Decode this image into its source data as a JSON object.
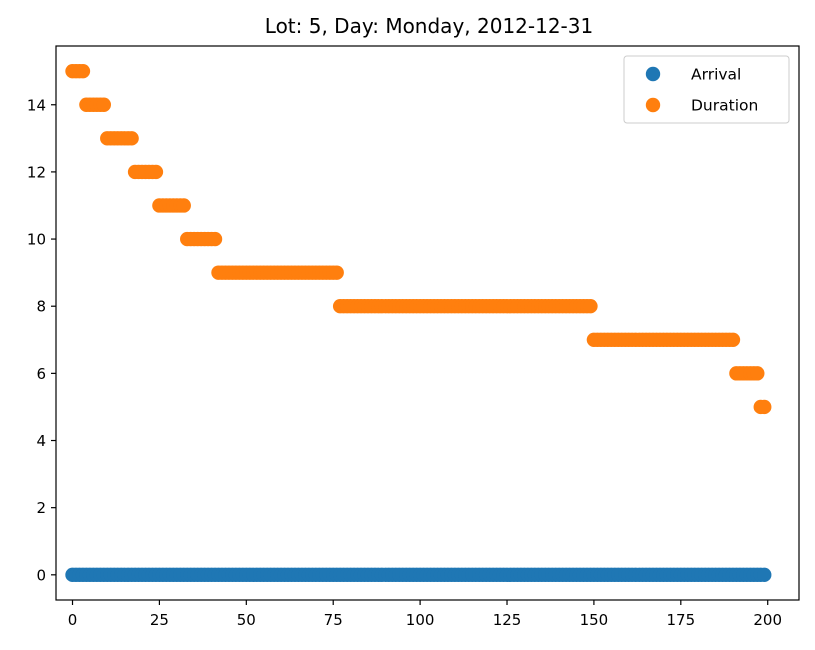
{
  "chart_data": {
    "type": "scatter",
    "title": "Lot: 5, Day: Monday, 2012-12-31",
    "xlabel": "",
    "ylabel": "",
    "xlim": [
      -4.75,
      209.0
    ],
    "ylim": [
      -0.75,
      15.75
    ],
    "xticks": [
      0,
      25,
      50,
      75,
      100,
      125,
      150,
      175,
      200
    ],
    "yticks": [
      0,
      2,
      4,
      6,
      8,
      10,
      12,
      14
    ],
    "legend_position": "upper-right",
    "series": [
      {
        "name": "Arrival",
        "color": "#1f77b4",
        "x_range": [
          0,
          199
        ],
        "y_segments": [
          {
            "from": 0,
            "to": 199,
            "y": 0
          }
        ]
      },
      {
        "name": "Duration",
        "color": "#ff7f0e",
        "x_range": [
          0,
          199
        ],
        "y_segments": [
          {
            "from": 0,
            "to": 3,
            "y": 15
          },
          {
            "from": 4,
            "to": 9,
            "y": 14
          },
          {
            "from": 10,
            "to": 17,
            "y": 13
          },
          {
            "from": 18,
            "to": 24,
            "y": 12
          },
          {
            "from": 25,
            "to": 32,
            "y": 11
          },
          {
            "from": 33,
            "to": 41,
            "y": 10
          },
          {
            "from": 42,
            "to": 76,
            "y": 9
          },
          {
            "from": 77,
            "to": 149,
            "y": 8
          },
          {
            "from": 150,
            "to": 190,
            "y": 7
          },
          {
            "from": 191,
            "to": 197,
            "y": 6
          },
          {
            "from": 198,
            "to": 199,
            "y": 5
          }
        ]
      }
    ]
  }
}
